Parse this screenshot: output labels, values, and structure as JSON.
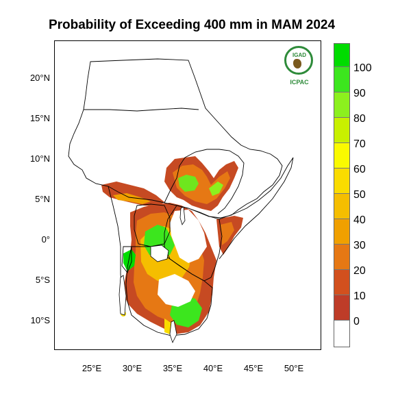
{
  "title": "Probability of Exceeding 400 mm in MAM 2024",
  "map": {
    "lat_labels": [
      "20°N",
      "15°N",
      "10°N",
      "5°N",
      "0°",
      "5°S",
      "10°S"
    ],
    "lon_labels": [
      "25°E",
      "30°E",
      "35°E",
      "40°E",
      "45°E",
      "50°E"
    ]
  },
  "legend": {
    "labels": [
      "100",
      "90",
      "80",
      "70",
      "60",
      "50",
      "40",
      "30",
      "20",
      "10",
      "0"
    ],
    "colors": [
      "#00dc00",
      "#3ce61e",
      "#8cf01e",
      "#c8f000",
      "#fafa00",
      "#fadc00",
      "#f5be00",
      "#f0a000",
      "#e67814",
      "#d2501e",
      "#be3c28",
      "#ffffff"
    ]
  },
  "logo": {
    "acronym": "IGAD",
    "name": "ICPAC"
  },
  "palette": {
    "dark_red": "#be3c28",
    "red_orange": "#d2501e",
    "orange": "#e67814",
    "amber": "#f0a000",
    "yellow": "#fadc00",
    "yellow_green": "#c8f000",
    "light_green": "#8cf01e",
    "green": "#3ce61e",
    "bright_green": "#00dc00"
  }
}
